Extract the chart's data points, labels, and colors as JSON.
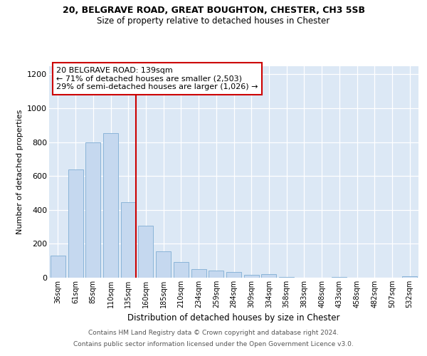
{
  "title1": "20, BELGRAVE ROAD, GREAT BOUGHTON, CHESTER, CH3 5SB",
  "title2": "Size of property relative to detached houses in Chester",
  "xlabel": "Distribution of detached houses by size in Chester",
  "ylabel": "Number of detached properties",
  "categories": [
    "36sqm",
    "61sqm",
    "85sqm",
    "110sqm",
    "135sqm",
    "160sqm",
    "185sqm",
    "210sqm",
    "234sqm",
    "259sqm",
    "284sqm",
    "309sqm",
    "334sqm",
    "358sqm",
    "383sqm",
    "408sqm",
    "433sqm",
    "458sqm",
    "482sqm",
    "507sqm",
    "532sqm"
  ],
  "values": [
    130,
    640,
    800,
    855,
    445,
    305,
    155,
    93,
    52,
    42,
    35,
    18,
    20,
    5,
    2,
    0,
    5,
    2,
    1,
    1,
    8
  ],
  "bar_color": "#c5d8ef",
  "bar_edge_color": "#8ab4d8",
  "vline_color": "#cc0000",
  "vline_index": 4,
  "annotation_title": "20 BELGRAVE ROAD: 139sqm",
  "annotation_line1": "← 71% of detached houses are smaller (2,503)",
  "annotation_line2": "29% of semi-detached houses are larger (1,026) →",
  "annotation_box_edgecolor": "#cc0000",
  "ylim": [
    0,
    1250
  ],
  "yticks": [
    0,
    200,
    400,
    600,
    800,
    1000,
    1200
  ],
  "footnote1": "Contains HM Land Registry data © Crown copyright and database right 2024.",
  "footnote2": "Contains public sector information licensed under the Open Government Licence v3.0.",
  "bg_color": "#ffffff",
  "plot_bg_color": "#dce8f5"
}
